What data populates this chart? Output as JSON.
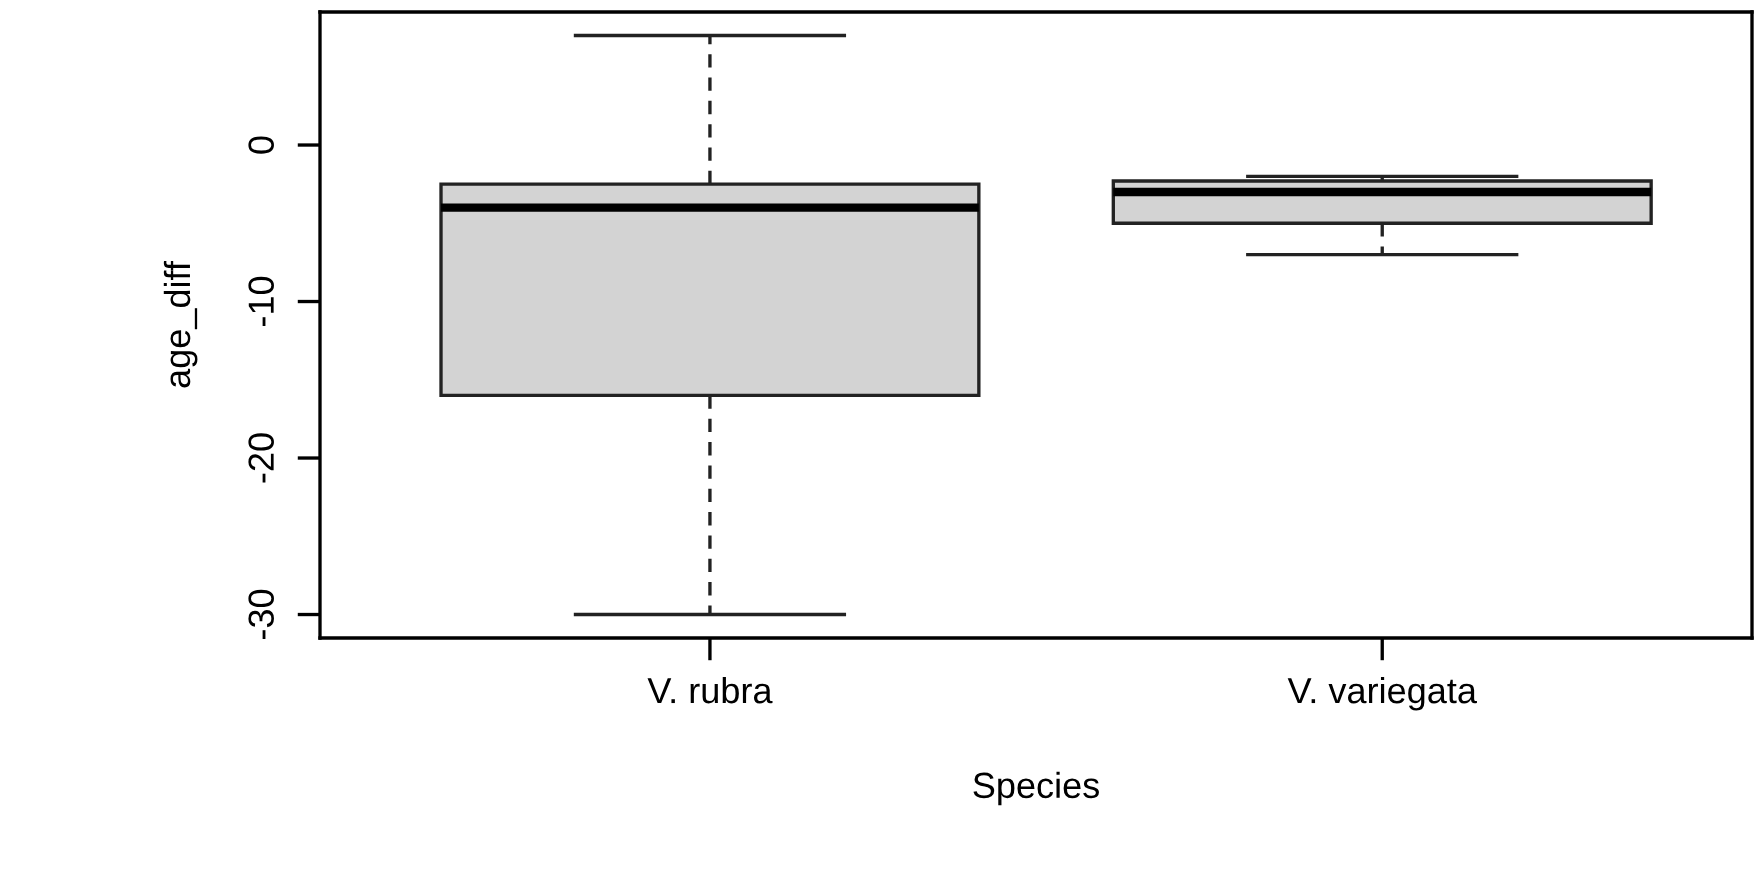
{
  "chart_data": {
    "type": "box",
    "xlabel": "Species",
    "ylabel": "age_diff",
    "categories": [
      "V. rubra",
      "V. variegata"
    ],
    "boxes": [
      {
        "low": -30,
        "q1": -16,
        "median": -4,
        "q3": -2.5,
        "high": 7
      },
      {
        "low": -7,
        "q1": -5,
        "median": -3,
        "q3": -2.3,
        "high": -2
      }
    ],
    "color": "#d3d3d3",
    "ylim": [
      -31.5,
      8.5
    ],
    "yticks": [
      0,
      -10,
      -20,
      -30
    ],
    "grid": false
  }
}
